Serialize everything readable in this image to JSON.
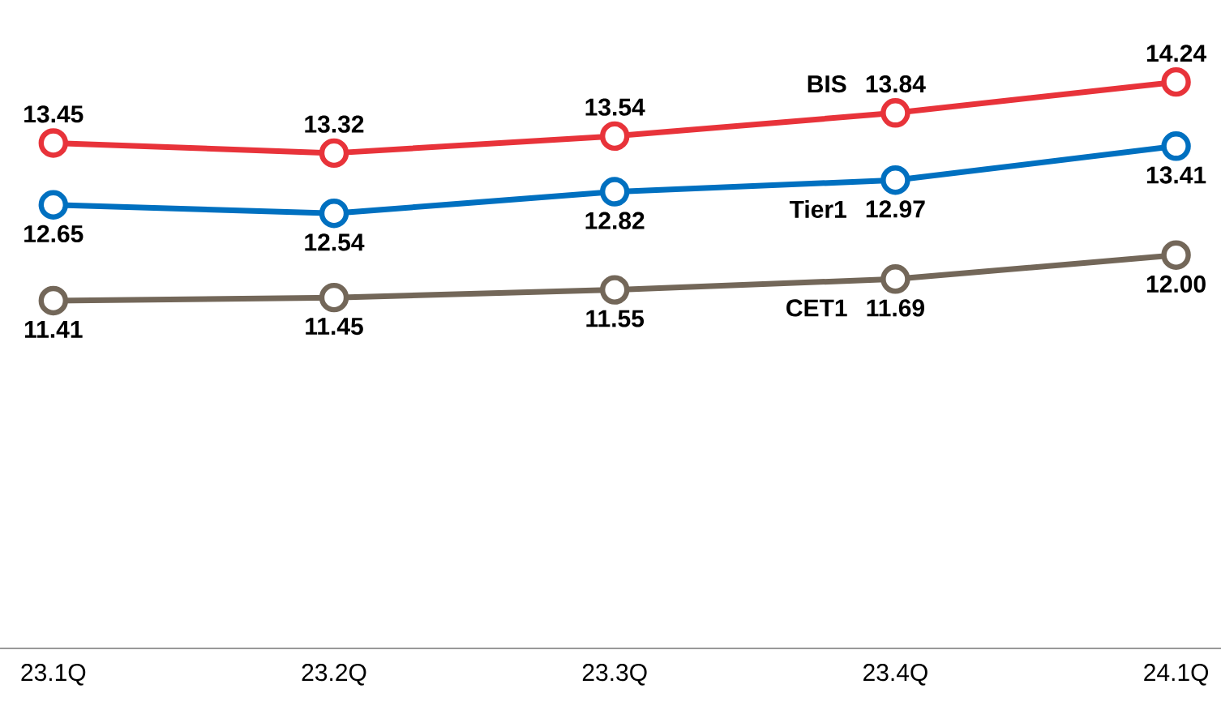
{
  "chart_data": {
    "type": "line",
    "categories": [
      "23.1Q",
      "23.2Q",
      "23.3Q",
      "23.4Q",
      "24.1Q"
    ],
    "series": [
      {
        "name": "BIS",
        "color": "#e8333a",
        "values": [
          13.45,
          13.32,
          13.54,
          13.84,
          14.24
        ],
        "value_labels": [
          "13.45",
          "13.32",
          "13.54",
          "13.84",
          "14.24"
        ]
      },
      {
        "name": "Tier1",
        "color": "#0070c0",
        "values": [
          12.65,
          12.54,
          12.82,
          12.97,
          13.41
        ],
        "value_labels": [
          "12.65",
          "12.54",
          "12.82",
          "12.97",
          "13.41"
        ]
      },
      {
        "name": "CET1",
        "color": "#736759",
        "values": [
          11.41,
          11.45,
          11.55,
          11.69,
          12.0
        ],
        "value_labels": [
          "11.41",
          "11.45",
          "11.55",
          "11.69",
          "12.00"
        ]
      }
    ],
    "marker": "circle",
    "line_style": "solid"
  }
}
